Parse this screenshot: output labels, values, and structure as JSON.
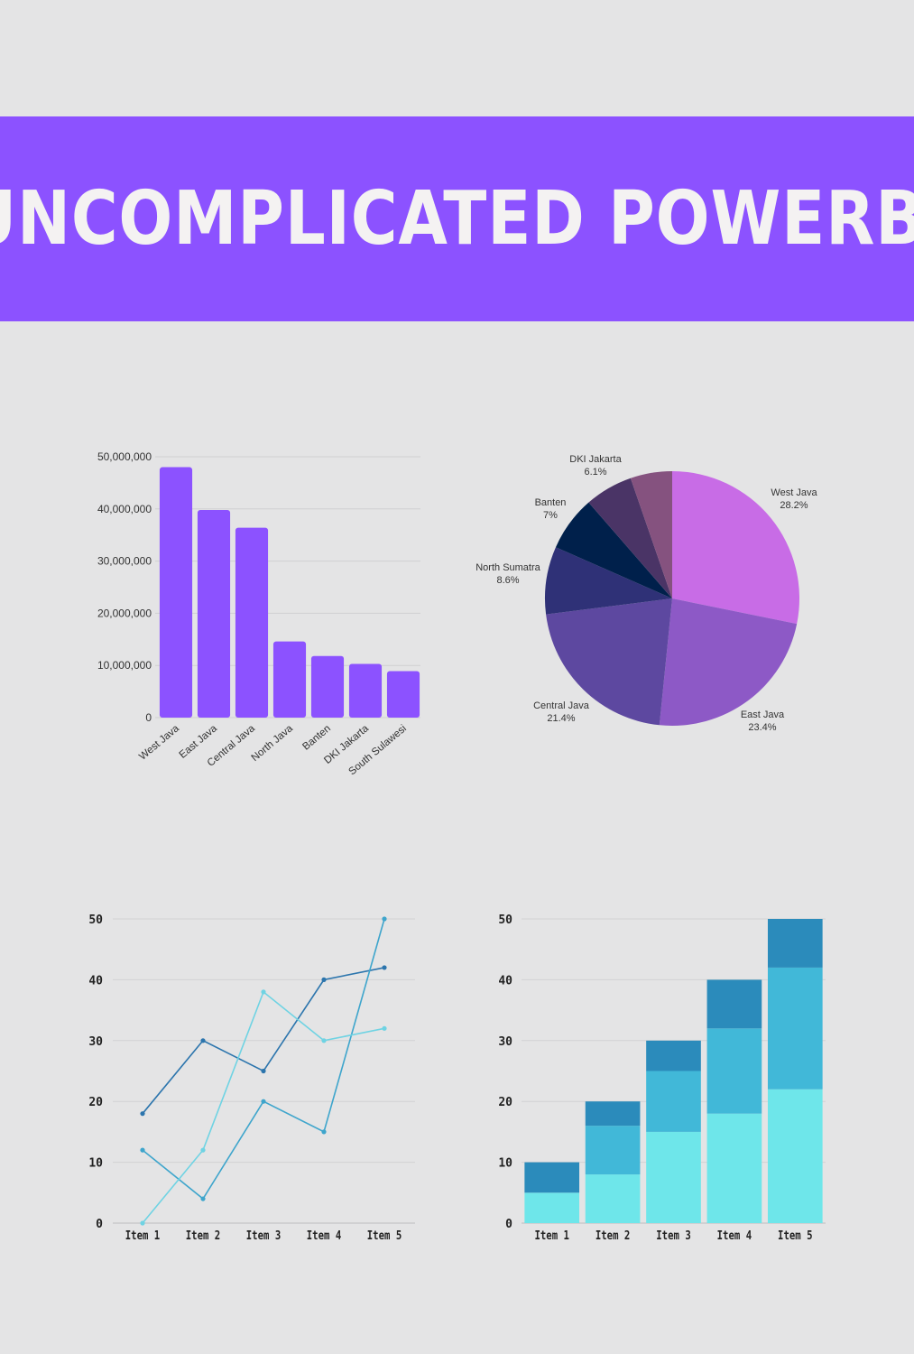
{
  "banner": {
    "title": "UNCOMPLICATED POWERBI"
  },
  "chart_data": [
    {
      "type": "bar",
      "categories": [
        "West Java",
        "East Java",
        "Central Java",
        "North Java",
        "Banten",
        "DKI Jakarta",
        "South Sulawesi"
      ],
      "values": [
        48000000,
        39800000,
        36400000,
        14600000,
        11800000,
        10300000,
        8900000
      ],
      "ylim": [
        0,
        50000000
      ],
      "yticks": [
        0,
        10000000,
        20000000,
        30000000,
        40000000,
        50000000
      ],
      "ytick_labels": [
        "0",
        "10,000,000",
        "20,000,000",
        "30,000,000",
        "40,000,000",
        "50,000,000"
      ],
      "grid": true,
      "color": "#8c52ff"
    },
    {
      "type": "pie",
      "slices": [
        {
          "label": "West Java",
          "pct_label": "28.2%",
          "value": 28.2,
          "color": "#c86ce6"
        },
        {
          "label": "East Java",
          "pct_label": "23.4%",
          "value": 23.4,
          "color": "#8d59c6"
        },
        {
          "label": "Central Java",
          "pct_label": "21.4%",
          "value": 21.4,
          "color": "#5d48a0"
        },
        {
          "label": "North Sumatra",
          "pct_label": "8.6%",
          "value": 8.6,
          "color": "#2f3177"
        },
        {
          "label": "Banten",
          "pct_label": "7%",
          "value": 7,
          "color": "#00204b"
        },
        {
          "label": "DKI Jakarta",
          "pct_label": "6.1%",
          "value": 6.1,
          "color": "#4a3466"
        },
        {
          "label": "",
          "pct_label": "",
          "value": 5.3,
          "color": "#85527f"
        }
      ]
    },
    {
      "type": "line",
      "categories": [
        "Item 1",
        "Item 2",
        "Item 3",
        "Item 4",
        "Item 5"
      ],
      "series": [
        {
          "values": [
            18,
            30,
            25,
            40,
            42
          ],
          "color": "#2c75ad"
        },
        {
          "values": [
            12,
            4,
            20,
            15,
            50
          ],
          "color": "#3ea5cc"
        },
        {
          "values": [
            0,
            12,
            38,
            30,
            32
          ],
          "color": "#6fd3e3"
        }
      ],
      "ylim": [
        0,
        50
      ],
      "yticks": [
        0,
        10,
        20,
        30,
        40,
        50
      ],
      "grid": true
    },
    {
      "type": "bar",
      "stacked": true,
      "categories": [
        "Item 1",
        "Item 2",
        "Item 3",
        "Item 4",
        "Item 5"
      ],
      "series": [
        {
          "values": [
            5,
            8,
            15,
            18,
            22
          ],
          "color": "#6ee6ea"
        },
        {
          "values": [
            0,
            8,
            10,
            14,
            20
          ],
          "color": "#41b8d8"
        },
        {
          "values": [
            5,
            4,
            5,
            8,
            8
          ],
          "color": "#2b8bbb"
        }
      ],
      "ylim": [
        0,
        50
      ],
      "yticks": [
        0,
        10,
        20,
        30,
        40,
        50
      ],
      "grid": true
    }
  ]
}
